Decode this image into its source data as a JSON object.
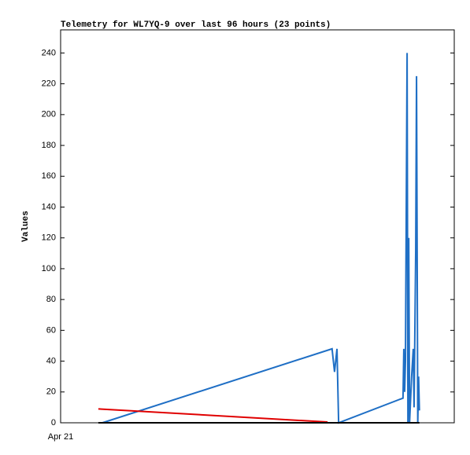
{
  "chart_data": {
    "type": "line",
    "title": "Telemetry for WL7YQ-9 over last 96 hours (23 points)",
    "y_label": "Values",
    "xlim": [
      0,
      96
    ],
    "xticks": [
      {
        "value": 0,
        "label": "Apr 21"
      }
    ],
    "ylim": [
      0,
      255
    ],
    "yticks": [
      0,
      20,
      40,
      60,
      80,
      100,
      120,
      140,
      160,
      180,
      200,
      220,
      240
    ],
    "series": [
      {
        "color": "#1f6fc5",
        "x": [
          10.2,
          66.2,
          66.8,
          67.4,
          67.8,
          83.5,
          83.7,
          83.9,
          84.1,
          84.5,
          84.7,
          84.9,
          85.1,
          85.6,
          86.0,
          86.2,
          86.6,
          86.8,
          87.1,
          87.3,
          87.5
        ],
        "values": [
          0,
          48,
          33,
          48,
          0,
          16,
          48,
          20,
          40,
          240,
          0,
          120,
          0,
          30,
          48,
          10,
          112,
          225,
          0,
          30,
          8
        ]
      },
      {
        "color": "#e00000",
        "x": [
          9.2,
          65.1
        ],
        "values": [
          9,
          0.5
        ]
      },
      {
        "color": "#000000",
        "x": [
          9.2,
          87.5
        ],
        "values": [
          0,
          0
        ]
      }
    ]
  }
}
